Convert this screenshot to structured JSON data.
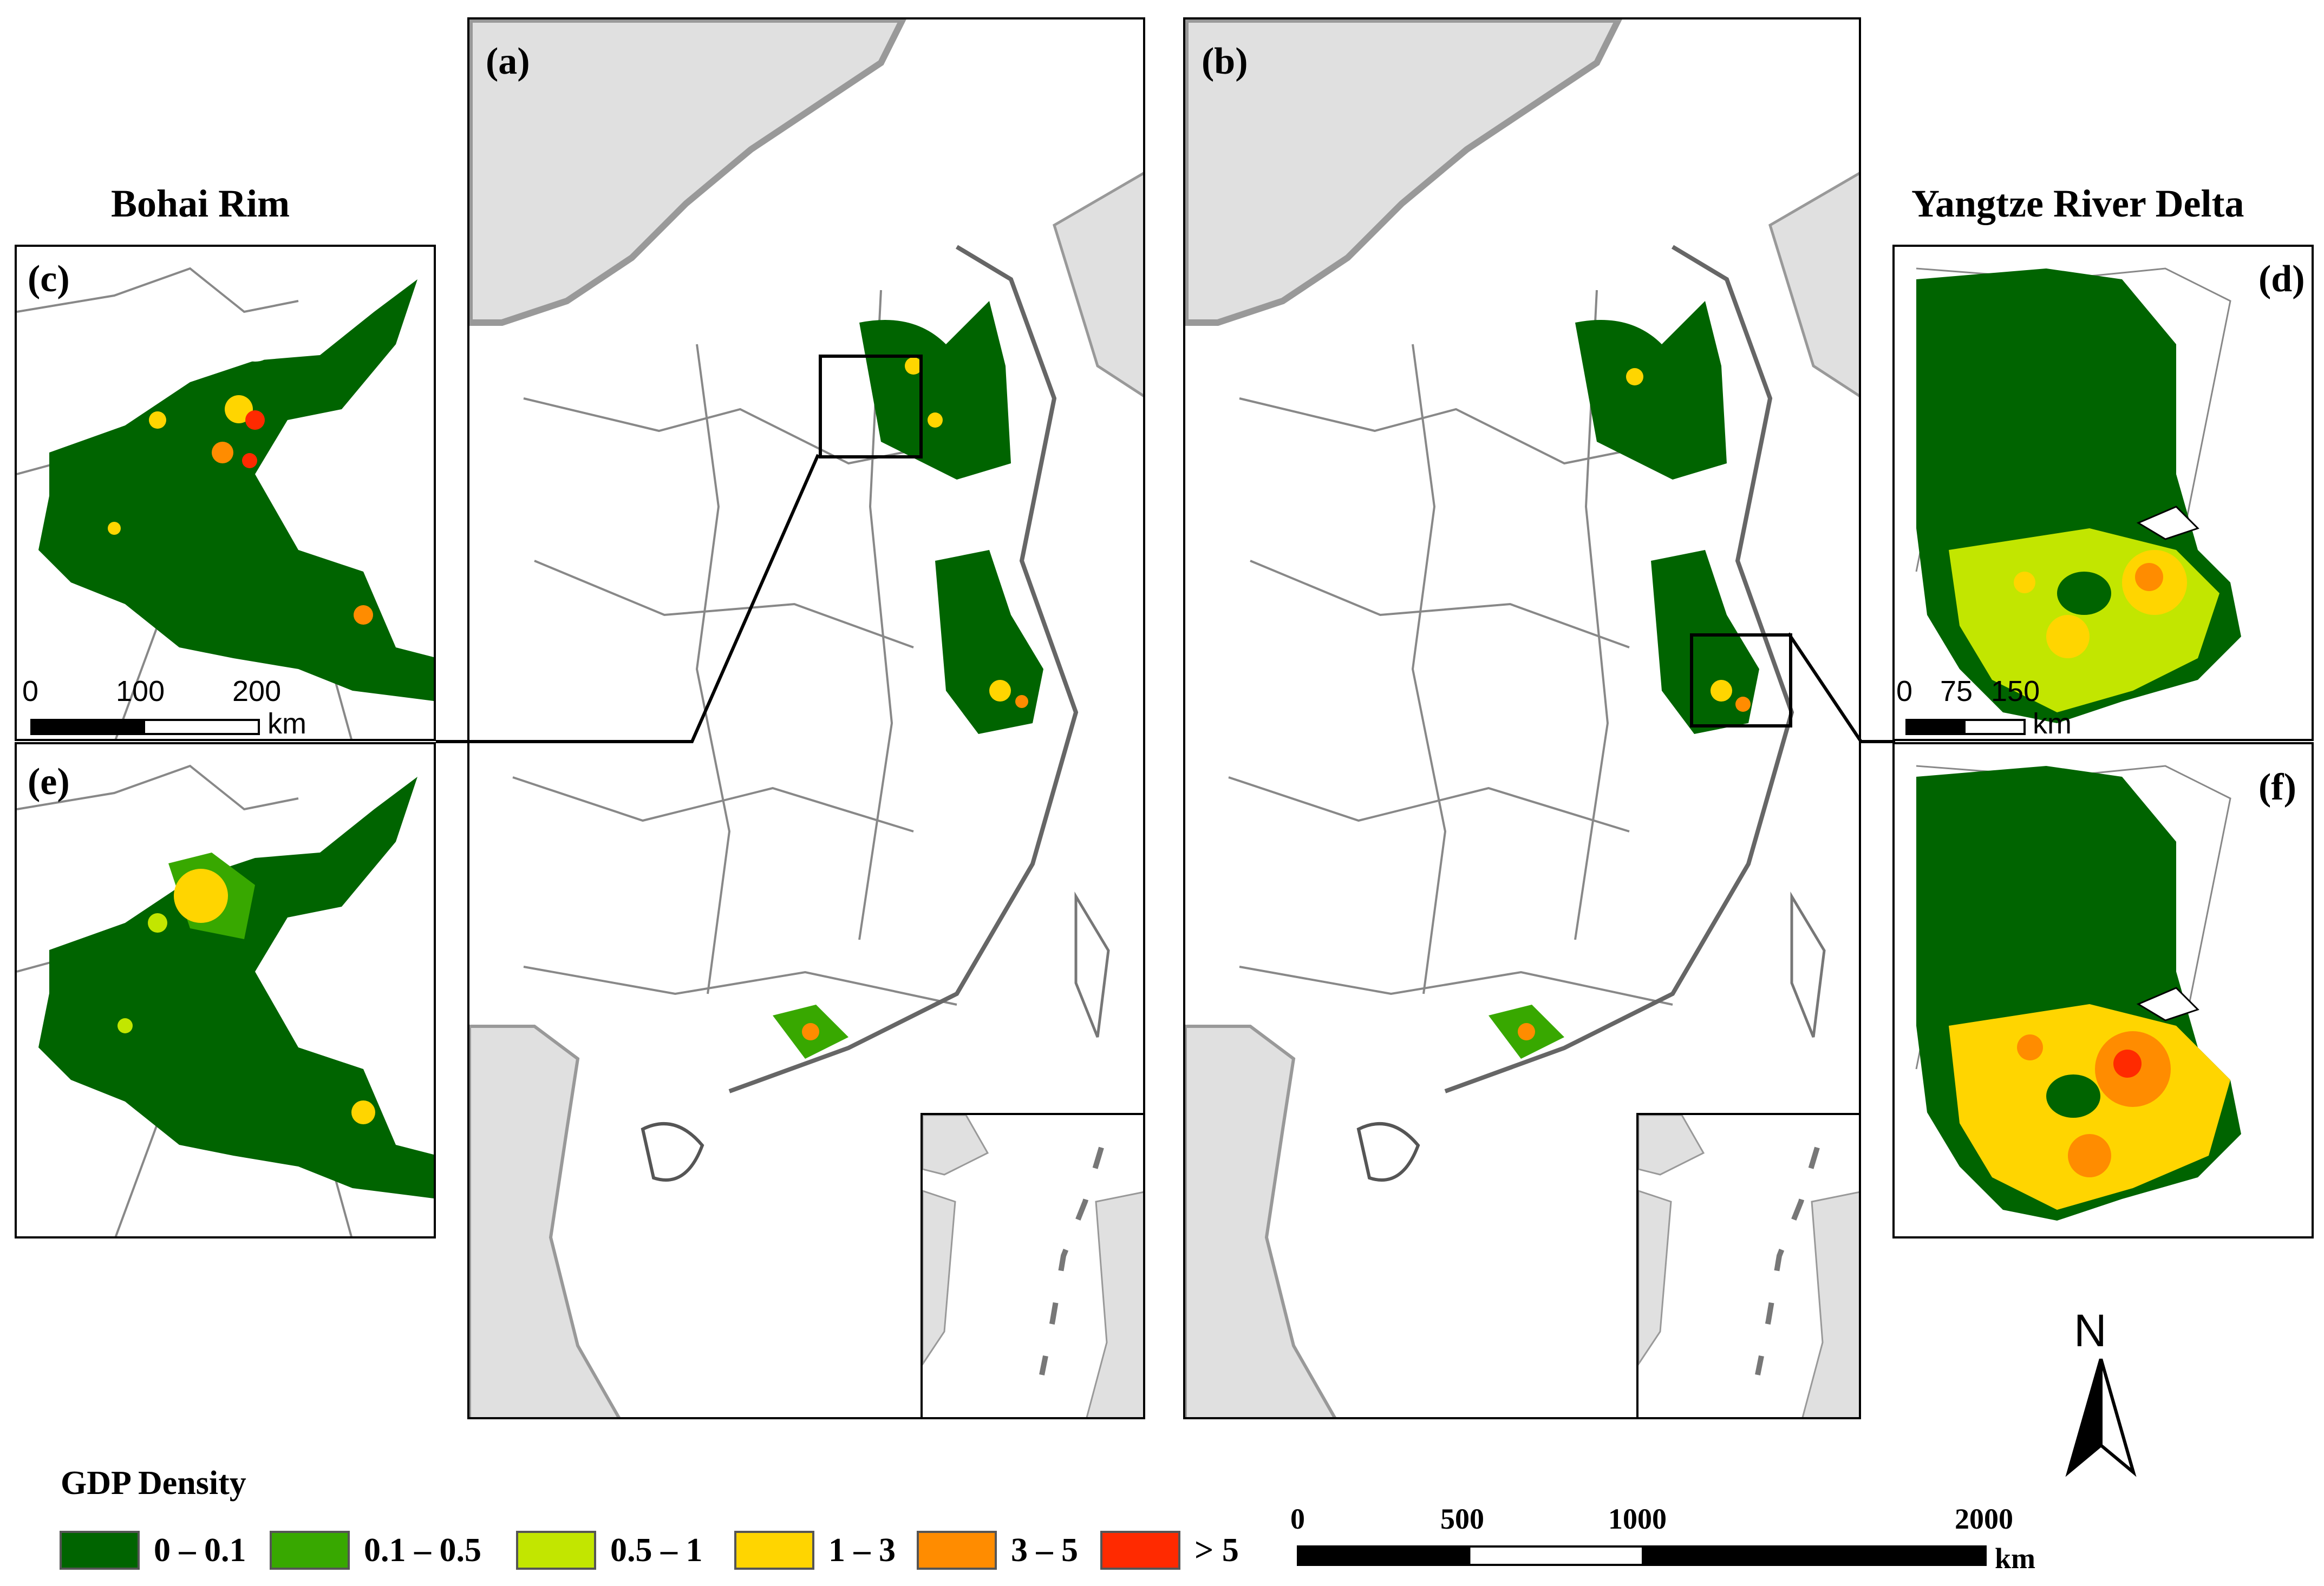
{
  "panels": {
    "a": "(a)",
    "b": "(b)",
    "c": "(c)",
    "d": "(d)",
    "e": "(e)",
    "f": "(f)"
  },
  "titles": {
    "bohai": "Bohai Rim",
    "yangtze": "Yangtze River Delta"
  },
  "inset_scale_bohai": {
    "ticks": [
      "0",
      "100",
      "200"
    ],
    "unit": "km"
  },
  "inset_scale_yangtze": {
    "ticks": [
      "0",
      "75",
      "150"
    ],
    "unit": "km"
  },
  "legend": {
    "title": "GDP Density",
    "classes": [
      {
        "label": "0 – 0.1",
        "color": "#006400"
      },
      {
        "label": "0.1 – 0.5",
        "color": "#38a800"
      },
      {
        "label": "0.5 – 1",
        "color": "#c2e600"
      },
      {
        "label": "1 – 3",
        "color": "#ffd500"
      },
      {
        "label": "3 – 5",
        "color": "#ff8c00"
      },
      {
        "label": "> 5",
        "color": "#ff2a00"
      }
    ]
  },
  "main_scale": {
    "ticks": [
      "0",
      "500",
      "1000",
      "2000"
    ],
    "unit": "km"
  },
  "north_arrow": {
    "label": "N",
    "icon": "north-arrow-icon"
  },
  "colors": {
    "land_background": "#e0e0e0",
    "border": "#999999"
  }
}
